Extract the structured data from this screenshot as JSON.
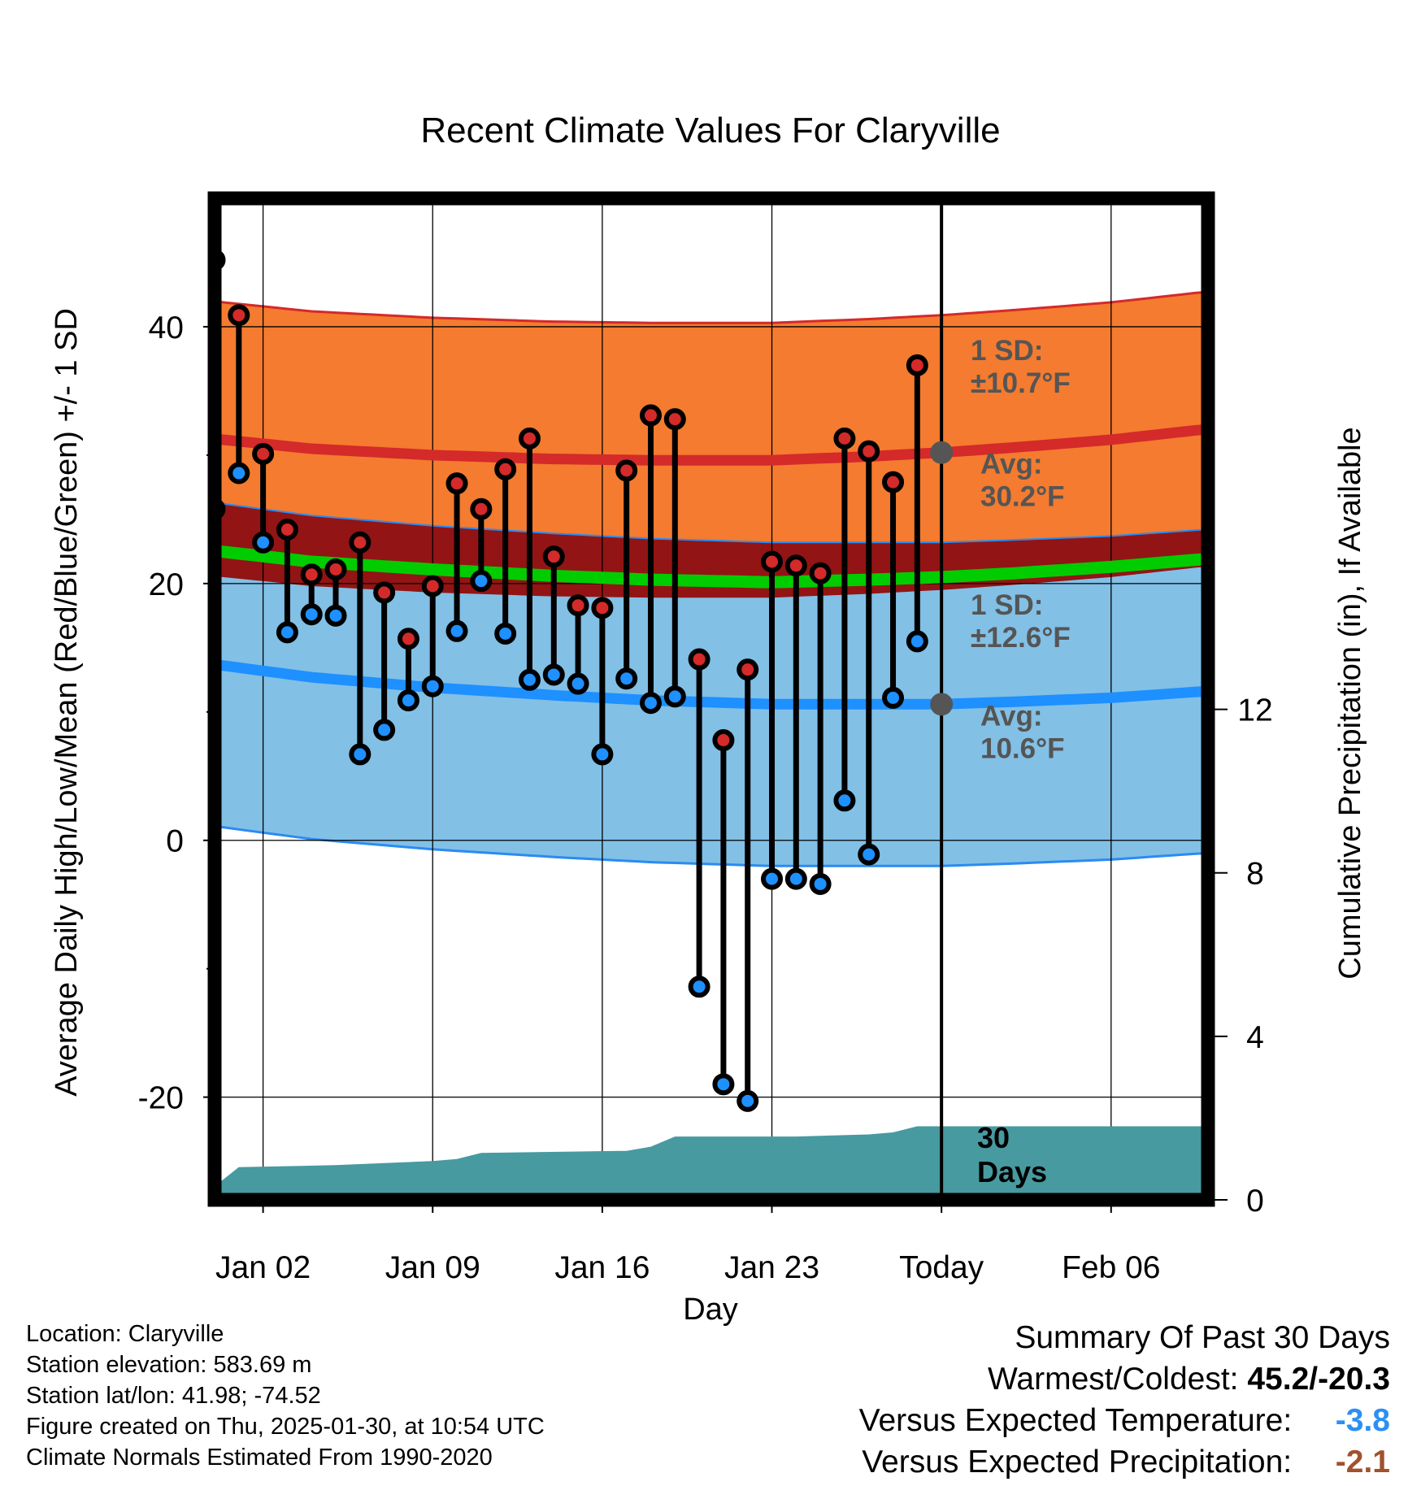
{
  "chart_data": {
    "type": "line",
    "title": "Recent Climate Values For Claryville",
    "xlabel": "Day",
    "ylabel": "Average Daily High/Low/Mean (Red/Blue/Green) +/- 1 SD",
    "y2label": "Cumulative Precipitation (in), If Available",
    "ylim": [
      -28,
      50
    ],
    "y2lim": [
      0,
      24.5
    ],
    "x_domain_days": [
      0,
      41
    ],
    "yticks": [
      -20,
      0,
      20,
      40
    ],
    "y2ticks": [
      0,
      4,
      8,
      12
    ],
    "xticks": [
      {
        "day": 2,
        "label": "Jan 02"
      },
      {
        "day": 9,
        "label": "Jan 09"
      },
      {
        "day": 16,
        "label": "Jan 16"
      },
      {
        "day": 23,
        "label": "Jan 23"
      },
      {
        "day": 30,
        "label": "Today"
      },
      {
        "day": 37,
        "label": "Feb 06"
      }
    ],
    "today_day": 30,
    "normals_x": [
      -1.2,
      4,
      9,
      14,
      18,
      23,
      27,
      30,
      33,
      37,
      40.8
    ],
    "normal_high": [
      31.5,
      30.5,
      30.0,
      29.7,
      29.6,
      29.6,
      29.9,
      30.2,
      30.6,
      31.2,
      32.0
    ],
    "normal_high_sd": 10.7,
    "normal_low": [
      14.0,
      12.7,
      11.9,
      11.3,
      10.9,
      10.6,
      10.6,
      10.6,
      10.8,
      11.1,
      11.6
    ],
    "normal_low_sd": 12.6,
    "normal_mean": [
      22.8,
      21.7,
      21.1,
      20.6,
      20.3,
      20.1,
      20.3,
      20.5,
      20.8,
      21.3,
      21.9
    ],
    "observed_days": [
      0,
      1,
      2,
      3,
      4,
      5,
      6,
      7,
      8,
      9,
      10,
      11,
      12,
      13,
      14,
      15,
      16,
      17,
      18,
      19,
      20,
      21,
      22,
      23,
      24,
      25,
      26,
      27,
      28,
      29
    ],
    "observed_high": [
      45.2,
      40.9,
      30.1,
      24.2,
      20.7,
      21.1,
      23.2,
      19.3,
      15.7,
      19.8,
      27.8,
      25.8,
      28.9,
      31.3,
      22.1,
      18.3,
      18.1,
      28.8,
      33.1,
      32.8,
      14.1,
      7.8,
      13.3,
      21.7,
      21.4,
      20.8,
      31.3,
      30.3,
      27.9,
      37.0
    ],
    "observed_low": [
      25.8,
      28.6,
      23.2,
      16.2,
      17.6,
      17.5,
      6.7,
      8.6,
      10.9,
      12.0,
      16.3,
      20.2,
      16.1,
      12.5,
      12.9,
      12.2,
      6.7,
      12.6,
      10.7,
      11.2,
      -11.4,
      -19.0,
      -20.3,
      -3.0,
      -3.0,
      -3.4,
      3.1,
      -1.1,
      11.1,
      15.5
    ],
    "precip_x": [
      -0.7,
      1,
      5,
      9,
      10,
      11,
      17,
      18,
      19,
      24,
      27,
      28,
      29,
      30,
      40.8
    ],
    "precip_cum": [
      0.0,
      0.8,
      0.85,
      0.95,
      1.0,
      1.15,
      1.2,
      1.3,
      1.55,
      1.55,
      1.6,
      1.65,
      1.8,
      1.8,
      1.8
    ],
    "annotations": {
      "high_sd": [
        "1 SD:",
        "±10.7°F"
      ],
      "high_avg": [
        "Avg:",
        "30.2°F"
      ],
      "low_sd": [
        "1 SD:",
        "±12.6°F"
      ],
      "low_avg": [
        "Avg:",
        "10.6°F"
      ],
      "days": [
        "30",
        "Days"
      ]
    },
    "colors": {
      "high_band": "#f47b2f",
      "high_line": "#d42a2a",
      "low_band": "#82c0e6",
      "low_line": "#1e90ff",
      "low_edge": "#2a8bf2",
      "overlap": "#931414",
      "mean_line": "#00cc00",
      "precip": "#479aa0",
      "marker_high": "#d42a2a",
      "marker_low": "#1e90ff",
      "annotation": "#555555"
    }
  },
  "info": {
    "location": "Location: Claryville",
    "elevation": "Station elevation: 583.69 m",
    "latlon": "Station lat/lon: 41.98; -74.52",
    "created": "Figure created on Thu, 2025-01-30, at 10:54 UTC",
    "normals": "Climate Normals Estimated From 1990-2020"
  },
  "summary": {
    "title": "Summary Of Past 30 Days",
    "warmest_label": "Warmest/Coldest:",
    "warmest_value": "45.2/-20.3",
    "temp_label": "Versus Expected Temperature:",
    "temp_value": "-3.8",
    "temp_color": "#2c8ff3",
    "precip_label": "Versus Expected Precipitation:",
    "precip_value": "-2.1",
    "precip_color": "#a0522d"
  }
}
